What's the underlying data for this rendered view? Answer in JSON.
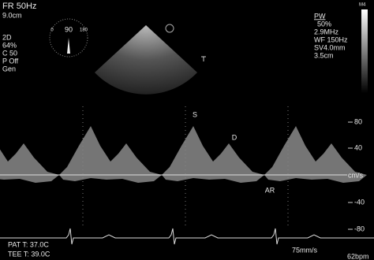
{
  "left_panel": {
    "frame_rate": "FR 50Hz",
    "depth": "9.0cm",
    "mode": "2D",
    "gain": "64%",
    "compression": "C 50",
    "power": "P Off",
    "preset": "Gen"
  },
  "probe_angle": {
    "angle": "90",
    "min": "0",
    "max": "180"
  },
  "right_panel": {
    "mode": "PW",
    "gain": "50%",
    "frequency": "2.9MHz",
    "wall_filter": "WF 150Hz",
    "sample_volume": "SV4.0mm",
    "depth": "3.5cm"
  },
  "grayscale_label": "M4",
  "scale": {
    "labels": [
      "80",
      "40",
      "cm/s",
      "-40",
      "-80"
    ]
  },
  "wave_labels": {
    "systolic": "S",
    "diastolic": "D",
    "atrial_reversal": "AR"
  },
  "footer": {
    "patient_temp": "PAT T: 37.0C",
    "probe_temp": "TEE T: 39.0C",
    "sweep": "75mm/s",
    "heart_rate": "62bpm"
  }
}
